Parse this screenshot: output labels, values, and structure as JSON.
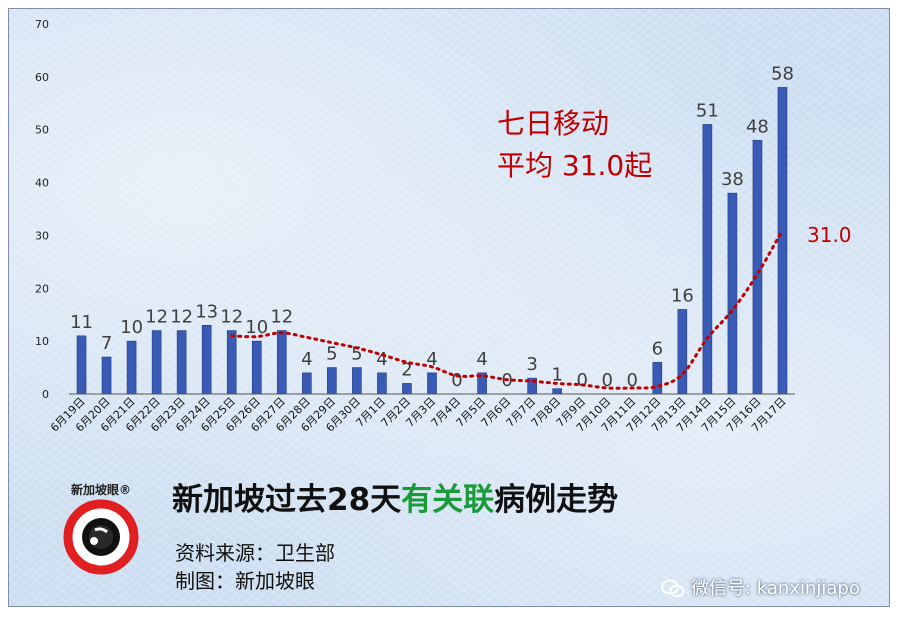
{
  "chart_data": {
    "type": "bar",
    "categories": [
      "6月19日",
      "6月20日",
      "6月21日",
      "6月22日",
      "6月23日",
      "6月24日",
      "6月25日",
      "6月26日",
      "6月27日",
      "6月28日",
      "6月29日",
      "6月30日",
      "7月1日",
      "7月2日",
      "7月3日",
      "7月4日",
      "7月5日",
      "7月6日",
      "7月7日",
      "7月8日",
      "7月9日",
      "7月10日",
      "7月11日",
      "7月12日",
      "7月13日",
      "7月14日",
      "7月15日",
      "7月16日",
      "7月17日"
    ],
    "values": [
      11,
      7,
      10,
      12,
      12,
      13,
      12,
      10,
      12,
      4,
      5,
      5,
      4,
      2,
      4,
      0,
      4,
      0,
      3,
      1,
      0,
      0,
      0,
      6,
      16,
      51,
      38,
      48,
      58
    ],
    "ylim": [
      0,
      70
    ],
    "yticks": [
      0,
      10,
      20,
      30,
      40,
      50,
      60,
      70
    ],
    "grid": false,
    "bar_color": "#3a5bb5",
    "label_color": "#404040",
    "trend": {
      "style": "dotted",
      "color": "#c00000",
      "end_value": 31.0,
      "end_label": "31.0",
      "annotation_line1": "七日移动",
      "annotation_line2": "平均 31.0起"
    }
  },
  "title": {
    "part1": "新加坡过去28天",
    "highlight": "有关联",
    "part2": "病例走势",
    "highlight_color": "#1a9a3a"
  },
  "credits": {
    "source": "资料来源：卫生部",
    "maker": "制图：新加坡眼"
  },
  "logo": {
    "text": "新加坡眼",
    "mark": "®",
    "ring_color": "#e02020",
    "icon": "eye-logo-icon"
  },
  "watermark": {
    "icon": "wechat-icon",
    "text": "微信号: kanxinjiapo"
  }
}
